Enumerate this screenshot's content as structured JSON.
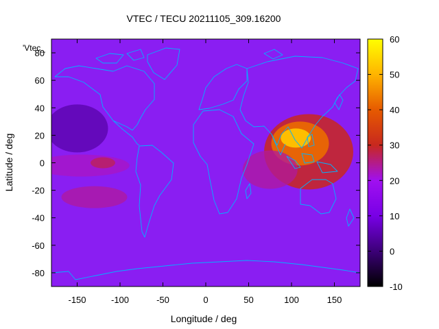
{
  "chart_data": {
    "type": "heatmap",
    "title": "VTEC / TECU 20211105_309.16200",
    "xlabel": "Longitude / deg",
    "ylabel": "Latitude / deg",
    "series_key": "'Vtec_",
    "xlim": [
      -180,
      180
    ],
    "ylim": [
      -90,
      90
    ],
    "xticks": [
      -150,
      -100,
      -50,
      0,
      50,
      100,
      150
    ],
    "yticks": [
      -80,
      -60,
      -40,
      -20,
      0,
      20,
      40,
      60,
      80
    ],
    "colorbar": {
      "range": [
        -10,
        60
      ],
      "ticks": [
        -10,
        0,
        10,
        20,
        30,
        40,
        50,
        60
      ],
      "palette": [
        "#000000",
        "#3c0078",
        "#7800e6",
        "#a010f0",
        "#c8281e",
        "#e65a00",
        "#ffb400",
        "#ffff00"
      ]
    },
    "grid": false,
    "coastline_color": "#00b4ff",
    "features": [
      {
        "name": "asia-pacific-peak",
        "lon": 105,
        "lat": 18,
        "value": 52
      },
      {
        "name": "east-pacific-band",
        "lon": -135,
        "lat": 0,
        "value": 24
      },
      {
        "name": "south-pacific-band",
        "lon": -130,
        "lat": -25,
        "value": 24
      },
      {
        "name": "indian-ocean-band",
        "lon": 75,
        "lat": -5,
        "value": 24
      }
    ]
  }
}
